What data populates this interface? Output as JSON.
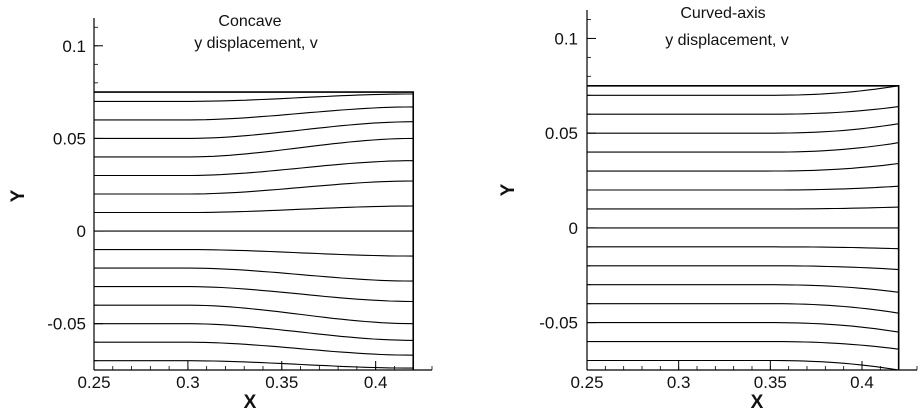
{
  "chart_data": [
    {
      "type": "contour",
      "title": "Concave",
      "subtitle": "y displacement, v",
      "xlabel": "X",
      "ylabel": "Y",
      "xlim": [
        0.25,
        0.43
      ],
      "ylim": [
        -0.075,
        0.115
      ],
      "xticks": [
        0.25,
        0.3,
        0.35,
        0.4
      ],
      "xtick_labels": [
        "0.25",
        "0.3",
        "0.35",
        "0.4"
      ],
      "yticks": [
        -0.05,
        0,
        0.05,
        0.1
      ],
      "ytick_labels": [
        "-0.05",
        "0",
        "0.05",
        "0.1"
      ],
      "domain": {
        "x": [
          0.25,
          0.42
        ],
        "y": [
          -0.075,
          0.075
        ]
      },
      "contour_levels": [
        0.07,
        0.06,
        0.05,
        0.04,
        0.03,
        0.02,
        0.01,
        0.0,
        -0.01,
        -0.02,
        -0.03,
        -0.04,
        -0.05,
        -0.06,
        -0.07
      ],
      "right_edge_y": [
        0.074,
        0.067,
        0.059,
        0.05,
        0.038,
        0.027,
        0.0135,
        0.0,
        -0.0135,
        -0.027,
        -0.038,
        -0.05,
        -0.059,
        -0.067,
        -0.074
      ],
      "bend_start_x": 0.3,
      "grid": false
    },
    {
      "type": "contour",
      "title": "Curved-axis",
      "subtitle": "y displacement, v",
      "xlabel": "X",
      "ylabel": "Y",
      "xlim": [
        0.25,
        0.43
      ],
      "ylim": [
        -0.075,
        0.115
      ],
      "xticks": [
        0.25,
        0.3,
        0.35,
        0.4
      ],
      "xtick_labels": [
        "0.25",
        "0.3",
        "0.35",
        "0.4"
      ],
      "yticks": [
        -0.05,
        0,
        0.05,
        0.1
      ],
      "ytick_labels": [
        "-0.05",
        "0",
        "0.05",
        "0.1"
      ],
      "domain": {
        "x": [
          0.25,
          0.42
        ],
        "y": [
          -0.075,
          0.075
        ]
      },
      "contour_levels": [
        0.07,
        0.06,
        0.05,
        0.04,
        0.03,
        0.02,
        0.01,
        0.0,
        -0.01,
        -0.02,
        -0.03,
        -0.04,
        -0.05,
        -0.06,
        -0.07
      ],
      "right_edge_y": [
        0.075,
        0.064,
        0.055,
        0.045,
        0.034,
        0.022,
        0.011,
        0.0,
        -0.011,
        -0.022,
        -0.034,
        -0.045,
        -0.055,
        -0.064,
        -0.075
      ],
      "bend_start_x": 0.35,
      "grid": false
    }
  ]
}
